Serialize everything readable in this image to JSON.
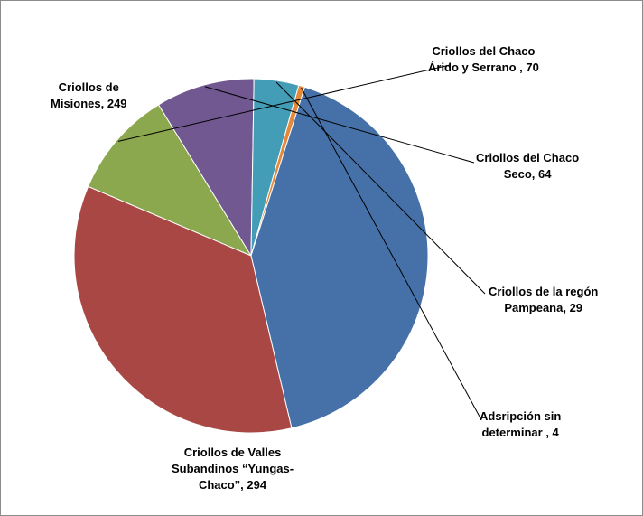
{
  "chart_data": {
    "type": "pie",
    "title": "",
    "slices": [
      {
        "name": "Criollos del Chaco Árido y Serrano",
        "value": 70,
        "color": "#8BA84E",
        "label_lines": [
          "Criollos del Chaco",
          "Árido y Serrano , 70"
        ]
      },
      {
        "name": "Criollos del Chaco Seco",
        "value": 64,
        "color": "#715891",
        "label_lines": [
          "Criollos del Chaco",
          "Seco, 64"
        ]
      },
      {
        "name": "Criollos de la regón Pampeana",
        "value": 29,
        "color": "#449DB6",
        "label_lines": [
          "Criollos de la regón",
          "Pampeana, 29"
        ]
      },
      {
        "name": "Adsripción sin determinar",
        "value": 4,
        "color": "#E48839",
        "label_lines": [
          "Adsripción sin",
          "determinar , 4"
        ]
      },
      {
        "name": "Criollos de Valles Subandinos “Yungas-Chaco”",
        "value": 294,
        "color": "#4571A8",
        "label_lines": [
          "Criollos de Valles",
          "Subandinos “Yungas-",
          "Chaco”, 294"
        ]
      },
      {
        "name": "Criollos de Misiones",
        "value": 249,
        "color": "#A94745",
        "label_lines": [
          "Criollos de",
          "Misiones, 249"
        ]
      }
    ],
    "legend": "none"
  }
}
